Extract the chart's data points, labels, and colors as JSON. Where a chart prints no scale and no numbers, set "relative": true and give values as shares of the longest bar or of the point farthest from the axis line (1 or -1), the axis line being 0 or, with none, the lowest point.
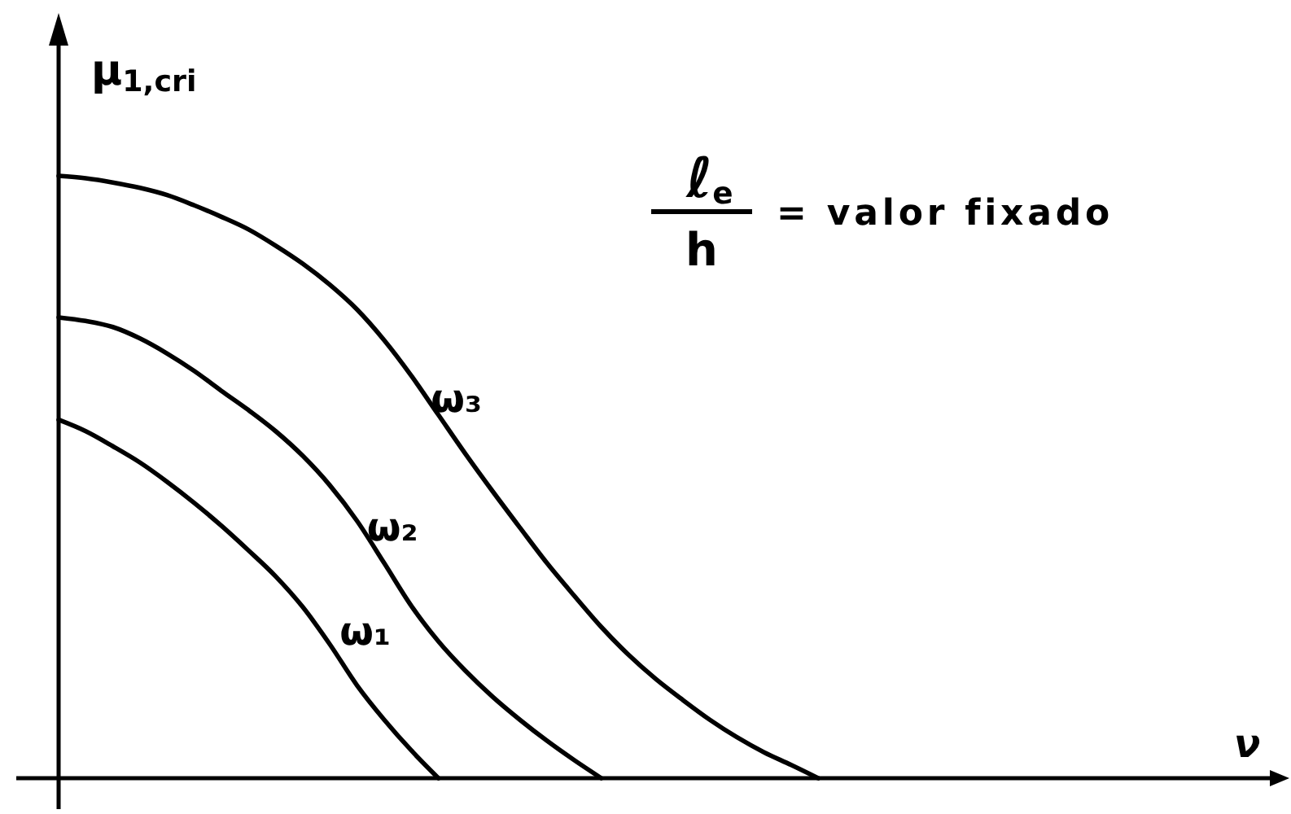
{
  "chart_data": {
    "type": "line",
    "relative": true,
    "ylabel": "μ$_{1,cri}$",
    "xlabel": "ν",
    "annotations": [
      "ℓ$_{e}$",
      "h",
      "= valor fixado"
    ],
    "categories": [
      null,
      null,
      null,
      null,
      null,
      null,
      null,
      null,
      null,
      null,
      null,
      null,
      null,
      null,
      null,
      null,
      null,
      null,
      null,
      null,
      null,
      null,
      null,
      null,
      null,
      null,
      null,
      null,
      null,
      null,
      null,
      null,
      null,
      null,
      null,
      null,
      null,
      null,
      null,
      null,
      null,
      null,
      null,
      null,
      null,
      null
    ],
    "series": [
      {
        "name": "ω₁",
        "color": "#000000",
        "values": [
          0.595,
          0.576,
          0.551,
          0.524,
          0.492,
          0.457,
          0.419,
          0.378,
          0.335,
          0.284,
          0.222,
          0.154,
          0.097,
          0.046,
          0,
          null,
          null,
          null,
          null,
          null,
          null,
          null,
          null,
          null,
          null,
          null,
          null,
          null,
          null,
          null,
          null,
          null,
          null,
          null,
          null,
          null,
          null,
          null,
          null,
          null,
          null,
          null,
          null,
          null,
          null,
          null
        ]
      },
      {
        "name": "ω₂",
        "color": "#000000",
        "values": [
          0.765,
          0.759,
          0.749,
          0.73,
          0.705,
          0.676,
          0.643,
          0.611,
          0.576,
          0.535,
          0.486,
          0.427,
          0.357,
          0.286,
          0.227,
          0.178,
          0.135,
          0.097,
          0.062,
          0.03,
          0,
          null,
          null,
          null,
          null,
          null,
          null,
          null,
          null,
          null,
          null,
          null,
          null,
          null,
          null,
          null,
          null,
          null,
          null,
          null,
          null,
          null,
          null,
          null,
          null,
          null
        ]
      },
      {
        "name": "ω₃",
        "color": "#000000",
        "values": [
          1,
          0.996,
          0.989,
          0.98,
          0.968,
          0.951,
          0.932,
          0.911,
          0.884,
          0.854,
          0.819,
          0.778,
          0.727,
          0.668,
          0.603,
          0.538,
          0.476,
          0.416,
          0.357,
          0.303,
          0.251,
          0.205,
          0.165,
          0.13,
          0.097,
          0.068,
          0.043,
          0.022,
          0,
          null,
          null,
          null,
          null,
          null,
          null,
          null,
          null,
          null,
          null,
          null,
          null,
          null,
          null,
          null,
          null,
          null
        ]
      }
    ]
  }
}
